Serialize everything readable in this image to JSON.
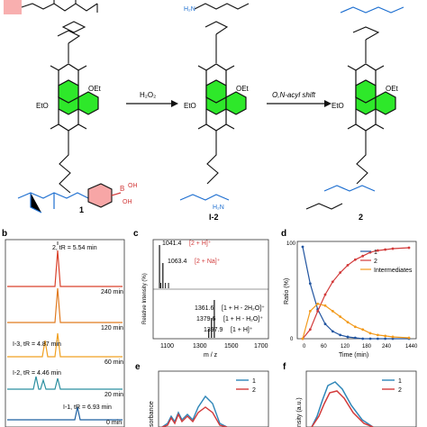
{
  "scheme": {
    "reagent1": "H₂O₂",
    "reagent2": "O,N-acyl shift",
    "oet_top_left": "OEt",
    "eto_bottom_left": "EtO",
    "oet_top_mid": "OEt",
    "eto_bottom_mid": "EtO",
    "oet_top_right": "OEt",
    "eto_bottom_right": "EtO",
    "boronic_B": "B",
    "boronic_OH1": "OH",
    "boronic_OH2": "OH",
    "cmpd1": "1",
    "cmpdI2": "I-2",
    "cmpd2": "2",
    "N": "N",
    "O": "O",
    "H": "H",
    "H2N": "H₂N",
    "NH": "NH"
  },
  "panel_b": {
    "label": "b",
    "peak_label_top": "2, tR = 5.54 min",
    "traces": [
      {
        "time": "240 min",
        "color": "#d9412a"
      },
      {
        "time": "120 min",
        "color": "#e07a1f"
      },
      {
        "time": "60 min",
        "color": "#f0a020"
      },
      {
        "time": "20 min",
        "color": "#2b8fa0"
      },
      {
        "time": "0 min",
        "color": "#1c5fa0"
      }
    ],
    "i3_label": "I-3, tR = 4.87 min",
    "i2_label": "I-2, tR = 4.46 min",
    "i1_label": "I-1, tR = 6.93 min"
  },
  "panel_c": {
    "label": "c",
    "ylabel": "Relative Intensity (%)",
    "xlabel": "m / z",
    "xticks": [
      "1100",
      "1300",
      "1500",
      "1700"
    ],
    "top_peaks": [
      {
        "mz": 1041.4,
        "text": "1041.4",
        "ion": "[2 + H]⁺"
      },
      {
        "mz": 1063.4,
        "text": "1063.4",
        "ion": "[2 + Na]⁺"
      }
    ],
    "bottom_peaks": [
      {
        "mz": 1361.6,
        "text": "1361.6",
        "ion": "[1 + H - 2H₂O]⁺"
      },
      {
        "mz": 1379.6,
        "text": "1379.6",
        "ion": "[1 + H - H₂O]⁺"
      },
      {
        "mz": 1397.9,
        "text": "1397.9",
        "ion": "[1 + H]⁺"
      }
    ]
  },
  "panel_d": {
    "label": "d",
    "ylabel": "Ratio (%)",
    "xlabel": "Time (min)",
    "xticks": [
      "0",
      "60",
      "120",
      "180",
      "240",
      "1440"
    ],
    "yticks": [
      "0",
      "20",
      "40",
      "60",
      "80",
      "100"
    ],
    "legend": [
      {
        "name": "1",
        "color": "#2255a0"
      },
      {
        "name": "2",
        "color": "#d23a3a"
      },
      {
        "name": "Intermediates",
        "color": "#f29a1b"
      }
    ]
  },
  "panel_e": {
    "label": "e",
    "ylabel": "sorbance",
    "legend": [
      {
        "name": "1",
        "color": "#2e86b8"
      },
      {
        "name": "2",
        "color": "#d23a3a"
      }
    ]
  },
  "panel_f": {
    "label": "f",
    "ylabel": "nsity (a.u.)",
    "legend": [
      {
        "name": "1",
        "color": "#2e86b8"
      },
      {
        "name": "2",
        "color": "#d23a3a"
      }
    ]
  }
}
